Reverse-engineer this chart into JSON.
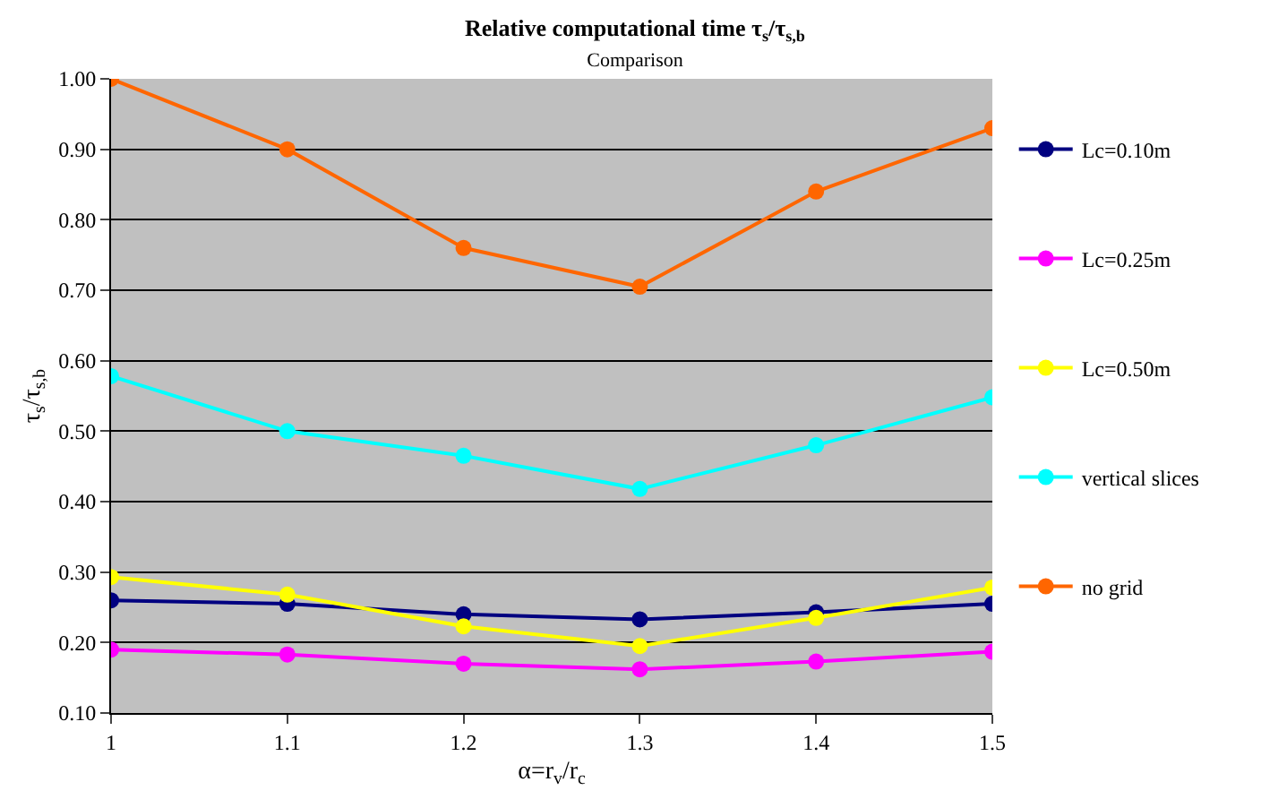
{
  "chart_data": {
    "type": "line",
    "title": "Relative computational time τ$_{s}$/τ$_{s,b}$",
    "subtitle": "Comparison",
    "xlabel": "α=r$_{v}$/r$_{c}$",
    "ylabel": "τ$_{s}$/τ$_{s,b}$",
    "x": [
      1,
      1.1,
      1.2,
      1.3,
      1.4,
      1.5
    ],
    "series": [
      {
        "name": "Lc=0.10m",
        "color": "#000080",
        "values": [
          0.26,
          0.255,
          0.24,
          0.233,
          0.243,
          0.255
        ]
      },
      {
        "name": "Lc=0.25m",
        "color": "#ff00ff",
        "values": [
          0.19,
          0.183,
          0.17,
          0.162,
          0.173,
          0.187
        ]
      },
      {
        "name": "Lc=0.50m",
        "color": "#ffff00",
        "values": [
          0.293,
          0.268,
          0.223,
          0.195,
          0.235,
          0.278
        ]
      },
      {
        "name": "vertical slices",
        "color": "#00ffff",
        "values": [
          0.578,
          0.5,
          0.465,
          0.418,
          0.48,
          0.548
        ]
      },
      {
        "name": "no grid",
        "color": "#ff6600",
        "values": [
          1.0,
          0.9,
          0.76,
          0.705,
          0.84,
          0.93
        ]
      }
    ],
    "xlim": [
      1,
      1.5
    ],
    "xticks": [
      1,
      1.1,
      1.2,
      1.3,
      1.4,
      1.5
    ],
    "ylim": [
      0.1,
      1.0
    ],
    "yticks": [
      {
        "value": 0.1,
        "label": "0.10"
      },
      {
        "value": 0.2,
        "label": "0.20"
      },
      {
        "value": 0.3,
        "label": "0.30"
      },
      {
        "value": 0.4,
        "label": "0.40"
      },
      {
        "value": 0.5,
        "label": "0.50"
      },
      {
        "value": 0.6,
        "label": "0.60"
      },
      {
        "value": 0.7,
        "label": "0.70"
      },
      {
        "value": 0.8,
        "label": "0.80"
      },
      {
        "value": 0.9,
        "label": "0.90"
      },
      {
        "value": 1.0,
        "label": "1.00"
      }
    ],
    "grid": "y",
    "legend": "right",
    "marker": "circle",
    "line_style": "solid"
  }
}
